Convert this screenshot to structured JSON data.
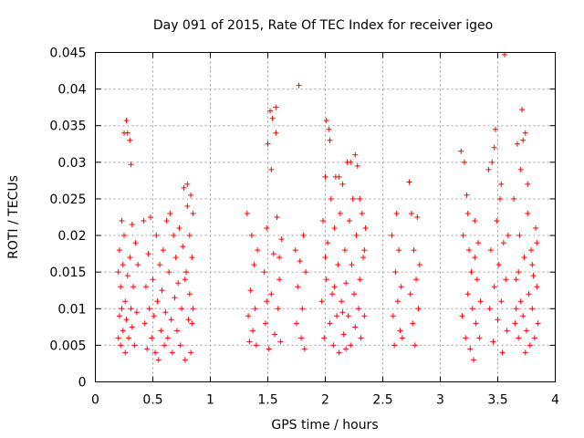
{
  "chart_data": {
    "type": "scatter",
    "title": "Day 091 of 2015, Rate Of TEC Index for receiver igeo",
    "xlabel": "GPS time / hours",
    "ylabel": "ROTI / TECUs",
    "xlim": [
      0,
      4
    ],
    "ylim": [
      0,
      0.045
    ],
    "xticks": [
      0,
      0.5,
      1,
      1.5,
      2,
      2.5,
      3,
      3.5,
      4
    ],
    "xtick_labels": [
      "0",
      "0.5",
      "1",
      "1.5",
      "2",
      "2.5",
      "3",
      "3.5",
      "4"
    ],
    "yticks": [
      0,
      0.005,
      0.01,
      0.015,
      0.02,
      0.025,
      0.03,
      0.035,
      0.04,
      0.045
    ],
    "ytick_labels": [
      "0",
      "0.005",
      "0.01",
      "0.015",
      "0.02",
      "0.025",
      "0.03",
      "0.035",
      "0.04",
      "0.045"
    ],
    "grid": true,
    "marker": "+",
    "color": "#ff0000",
    "series": [
      {
        "name": "ROTI",
        "points": [
          [
            0.2,
            0.015
          ],
          [
            0.2,
            0.006
          ],
          [
            0.21,
            0.009
          ],
          [
            0.21,
            0.018
          ],
          [
            0.22,
            0.013
          ],
          [
            0.22,
            0.005
          ],
          [
            0.23,
            0.022
          ],
          [
            0.23,
            0.01
          ],
          [
            0.24,
            0.016
          ],
          [
            0.24,
            0.007
          ],
          [
            0.25,
            0.034
          ],
          [
            0.25,
            0.02
          ],
          [
            0.26,
            0.011
          ],
          [
            0.26,
            0.004
          ],
          [
            0.27,
            0.0357
          ],
          [
            0.27,
            0.0085
          ],
          [
            0.28,
            0.034
          ],
          [
            0.28,
            0.0145
          ],
          [
            0.29,
            0.006
          ],
          [
            0.3,
            0.033
          ],
          [
            0.3,
            0.017
          ],
          [
            0.31,
            0.0297
          ],
          [
            0.31,
            0.01
          ],
          [
            0.32,
            0.0215
          ],
          [
            0.32,
            0.0075
          ],
          [
            0.33,
            0.013
          ],
          [
            0.34,
            0.005
          ],
          [
            0.35,
            0.019
          ],
          [
            0.36,
            0.0095
          ],
          [
            0.37,
            0.016
          ],
          [
            0.42,
            0.022
          ],
          [
            0.43,
            0.008
          ],
          [
            0.44,
            0.013
          ],
          [
            0.45,
            0.0045
          ],
          [
            0.46,
            0.0175
          ],
          [
            0.47,
            0.01
          ],
          [
            0.48,
            0.0225
          ],
          [
            0.49,
            0.006
          ],
          [
            0.5,
            0.014
          ],
          [
            0.51,
            0.009
          ],
          [
            0.52,
            0.004
          ],
          [
            0.53,
            0.02
          ],
          [
            0.54,
            0.011
          ],
          [
            0.55,
            0.003
          ],
          [
            0.56,
            0.016
          ],
          [
            0.57,
            0.007
          ],
          [
            0.58,
            0.0125
          ],
          [
            0.59,
            0.018
          ],
          [
            0.6,
            0.005
          ],
          [
            0.61,
            0.0095
          ],
          [
            0.62,
            0.022
          ],
          [
            0.63,
            0.006
          ],
          [
            0.64,
            0.015
          ],
          [
            0.65,
            0.023
          ],
          [
            0.66,
            0.0085
          ],
          [
            0.67,
            0.004
          ],
          [
            0.68,
            0.02
          ],
          [
            0.69,
            0.0115
          ],
          [
            0.7,
            0.017
          ],
          [
            0.71,
            0.007
          ],
          [
            0.72,
            0.0135
          ],
          [
            0.73,
            0.021
          ],
          [
            0.74,
            0.005
          ],
          [
            0.75,
            0.01
          ],
          [
            0.76,
            0.0185
          ],
          [
            0.77,
            0.0265
          ],
          [
            0.78,
            0.003
          ],
          [
            0.79,
            0.015
          ],
          [
            0.8,
            0.024
          ],
          [
            0.81,
            0.0085
          ],
          [
            0.82,
            0.02
          ],
          [
            0.82,
            0.012
          ],
          [
            0.83,
            0.004
          ],
          [
            0.83,
            0.0255
          ],
          [
            0.84,
            0.017
          ],
          [
            0.84,
            0.008
          ],
          [
            0.85,
            0.023
          ],
          [
            0.85,
            0.01
          ],
          [
            0.8,
            0.027
          ],
          [
            0.78,
            0.014
          ],
          [
            1.32,
            0.023
          ],
          [
            1.33,
            0.009
          ],
          [
            1.34,
            0.0055
          ],
          [
            1.35,
            0.0125
          ],
          [
            1.36,
            0.02
          ],
          [
            1.37,
            0.007
          ],
          [
            1.38,
            0.016
          ],
          [
            1.39,
            0.01
          ],
          [
            1.4,
            0.005
          ],
          [
            1.41,
            0.018
          ],
          [
            1.47,
            0.015
          ],
          [
            1.48,
            0.008
          ],
          [
            1.49,
            0.021
          ],
          [
            1.5,
            0.0325
          ],
          [
            1.51,
            0.0045
          ],
          [
            1.52,
            0.037
          ],
          [
            1.53,
            0.012
          ],
          [
            1.54,
            0.036
          ],
          [
            1.55,
            0.0175
          ],
          [
            1.56,
            0.0065
          ],
          [
            1.57,
            0.034
          ],
          [
            1.58,
            0.0225
          ],
          [
            1.59,
            0.01
          ],
          [
            1.6,
            0.014
          ],
          [
            1.61,
            0.0055
          ],
          [
            1.62,
            0.0195
          ],
          [
            1.57,
            0.0375
          ],
          [
            1.53,
            0.029
          ],
          [
            1.49,
            0.011
          ],
          [
            1.6,
            0.017
          ],
          [
            1.74,
            0.018
          ],
          [
            1.75,
            0.008
          ],
          [
            1.76,
            0.013
          ],
          [
            1.77,
            0.0405
          ],
          [
            1.78,
            0.0165
          ],
          [
            1.79,
            0.006
          ],
          [
            1.8,
            0.01
          ],
          [
            1.81,
            0.02
          ],
          [
            1.82,
            0.0045
          ],
          [
            1.83,
            0.015
          ],
          [
            1.97,
            0.011
          ],
          [
            1.98,
            0.022
          ],
          [
            1.99,
            0.006
          ],
          [
            2.0,
            0.028
          ],
          [
            2.01,
            0.0357
          ],
          [
            2.01,
            0.014
          ],
          [
            2.02,
            0.019
          ],
          [
            2.03,
            0.0345
          ],
          [
            2.04,
            0.008
          ],
          [
            2.05,
            0.025
          ],
          [
            2.06,
            0.012
          ],
          [
            2.07,
            0.005
          ],
          [
            2.08,
            0.021
          ],
          [
            2.09,
            0.028
          ],
          [
            2.1,
            0.009
          ],
          [
            2.11,
            0.016
          ],
          [
            2.12,
            0.004
          ],
          [
            2.13,
            0.023
          ],
          [
            2.14,
            0.011
          ],
          [
            2.15,
            0.027
          ],
          [
            2.16,
            0.0065
          ],
          [
            2.17,
            0.018
          ],
          [
            2.18,
            0.0135
          ],
          [
            2.19,
            0.03
          ],
          [
            2.2,
            0.009
          ],
          [
            2.21,
            0.022
          ],
          [
            2.22,
            0.005
          ],
          [
            2.23,
            0.016
          ],
          [
            2.24,
            0.025
          ],
          [
            2.25,
            0.012
          ],
          [
            2.26,
            0.0075
          ],
          [
            2.27,
            0.02
          ],
          [
            2.28,
            0.0295
          ],
          [
            2.29,
            0.01
          ],
          [
            2.3,
            0.014
          ],
          [
            2.31,
            0.006
          ],
          [
            2.32,
            0.023
          ],
          [
            2.33,
            0.017
          ],
          [
            2.34,
            0.009
          ],
          [
            2.35,
            0.021
          ],
          [
            2.04,
            0.033
          ],
          [
            2.22,
            0.03
          ],
          [
            2.3,
            0.025
          ],
          [
            2.12,
            0.028
          ],
          [
            2.26,
            0.031
          ],
          [
            2.0,
            0.017
          ],
          [
            2.18,
            0.0045
          ],
          [
            2.08,
            0.013
          ],
          [
            2.34,
            0.018
          ],
          [
            2.15,
            0.0095
          ],
          [
            2.58,
            0.02
          ],
          [
            2.59,
            0.009
          ],
          [
            2.6,
            0.005
          ],
          [
            2.61,
            0.015
          ],
          [
            2.62,
            0.023
          ],
          [
            2.63,
            0.011
          ],
          [
            2.64,
            0.018
          ],
          [
            2.65,
            0.007
          ],
          [
            2.66,
            0.013
          ],
          [
            2.67,
            0.006
          ],
          [
            2.73,
            0.0273
          ],
          [
            2.74,
            0.012
          ],
          [
            2.75,
            0.023
          ],
          [
            2.76,
            0.008
          ],
          [
            2.77,
            0.018
          ],
          [
            2.78,
            0.005
          ],
          [
            2.79,
            0.014
          ],
          [
            2.8,
            0.0225
          ],
          [
            2.81,
            0.01
          ],
          [
            2.82,
            0.016
          ],
          [
            3.18,
            0.0315
          ],
          [
            3.19,
            0.009
          ],
          [
            3.2,
            0.02
          ],
          [
            3.21,
            0.03
          ],
          [
            3.22,
            0.006
          ],
          [
            3.23,
            0.0255
          ],
          [
            3.24,
            0.012
          ],
          [
            3.25,
            0.018
          ],
          [
            3.26,
            0.0045
          ],
          [
            3.27,
            0.015
          ],
          [
            3.28,
            0.01
          ],
          [
            3.29,
            0.003
          ],
          [
            3.3,
            0.022
          ],
          [
            3.31,
            0.008
          ],
          [
            3.32,
            0.014
          ],
          [
            3.33,
            0.019
          ],
          [
            3.34,
            0.006
          ],
          [
            3.35,
            0.011
          ],
          [
            3.24,
            0.023
          ],
          [
            3.3,
            0.017
          ],
          [
            3.42,
            0.029
          ],
          [
            3.43,
            0.01
          ],
          [
            3.44,
            0.018
          ],
          [
            3.45,
            0.03
          ],
          [
            3.46,
            0.0055
          ],
          [
            3.47,
            0.013
          ],
          [
            3.48,
            0.0345
          ],
          [
            3.49,
            0.022
          ],
          [
            3.5,
            0.0085
          ],
          [
            3.51,
            0.016
          ],
          [
            3.52,
            0.025
          ],
          [
            3.53,
            0.011
          ],
          [
            3.54,
            0.004
          ],
          [
            3.55,
            0.019
          ],
          [
            3.56,
            0.0447
          ],
          [
            3.57,
            0.014
          ],
          [
            3.58,
            0.007
          ],
          [
            3.59,
            0.02
          ],
          [
            3.47,
            0.032
          ],
          [
            3.53,
            0.027
          ],
          [
            3.64,
            0.025
          ],
          [
            3.65,
            0.008
          ],
          [
            3.66,
            0.014
          ],
          [
            3.67,
            0.0325
          ],
          [
            3.68,
            0.006
          ],
          [
            3.69,
            0.02
          ],
          [
            3.7,
            0.011
          ],
          [
            3.71,
            0.0372
          ],
          [
            3.72,
            0.009
          ],
          [
            3.73,
            0.017
          ],
          [
            3.74,
            0.034
          ],
          [
            3.75,
            0.007
          ],
          [
            3.76,
            0.023
          ],
          [
            3.77,
            0.012
          ],
          [
            3.78,
            0.005
          ],
          [
            3.79,
            0.018
          ],
          [
            3.8,
            0.01
          ],
          [
            3.81,
            0.0145
          ],
          [
            3.82,
            0.006
          ],
          [
            3.83,
            0.021
          ],
          [
            3.84,
            0.013
          ],
          [
            3.85,
            0.008
          ],
          [
            3.7,
            0.029
          ],
          [
            3.76,
            0.027
          ],
          [
            3.72,
            0.033
          ],
          [
            3.8,
            0.016
          ],
          [
            3.66,
            0.01
          ],
          [
            3.74,
            0.004
          ],
          [
            3.68,
            0.015
          ],
          [
            3.84,
            0.019
          ]
        ]
      }
    ]
  }
}
